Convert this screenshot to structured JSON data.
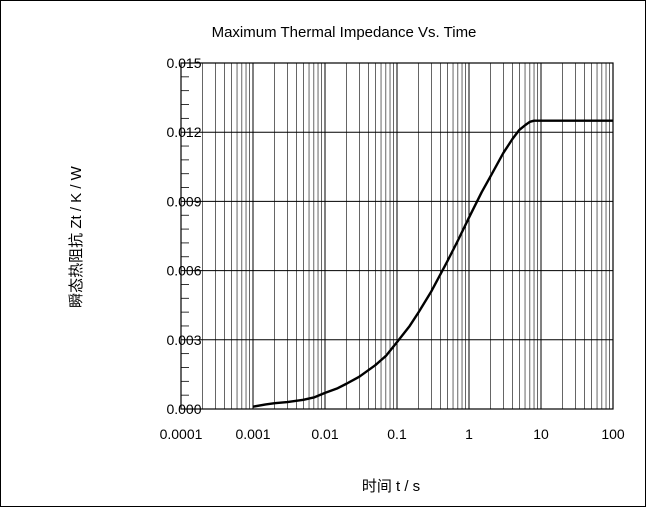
{
  "chart_data": {
    "type": "line",
    "title": "Maximum Thermal Impedance Vs. Time",
    "xlabel": "时间  t / s",
    "ylabel": "瞬态热阻抗  Zt / K / W",
    "xscale": "log",
    "xlim": [
      0.0001,
      100
    ],
    "ylim": [
      0,
      0.015
    ],
    "x_tick_labels": [
      "0.0001",
      "0.001",
      "0.01",
      "0.1",
      "1",
      "10",
      "100"
    ],
    "y_tick_labels": [
      "0.000",
      "0.003",
      "0.006",
      "0.009",
      "0.012",
      "0.015"
    ],
    "grid": true,
    "legend": "none",
    "series": [
      {
        "color": "#000000",
        "x": [
          0.001,
          0.0015,
          0.002,
          0.003,
          0.005,
          0.007,
          0.01,
          0.015,
          0.02,
          0.03,
          0.05,
          0.07,
          0.1,
          0.15,
          0.2,
          0.3,
          0.5,
          0.7,
          1,
          1.5,
          2,
          3,
          4,
          5,
          6,
          7,
          8,
          10,
          15,
          20,
          50,
          100
        ],
        "y": [
          0.0001,
          0.0002,
          0.00025,
          0.0003,
          0.0004,
          0.0005,
          0.0007,
          0.0009,
          0.0011,
          0.0014,
          0.0019,
          0.0023,
          0.0029,
          0.0036,
          0.0042,
          0.0051,
          0.0064,
          0.0073,
          0.0083,
          0.0094,
          0.0101,
          0.0111,
          0.0117,
          0.0121,
          0.0123,
          0.01245,
          0.0125,
          0.0125,
          0.0125,
          0.0125,
          0.0125,
          0.0125
        ]
      }
    ]
  }
}
